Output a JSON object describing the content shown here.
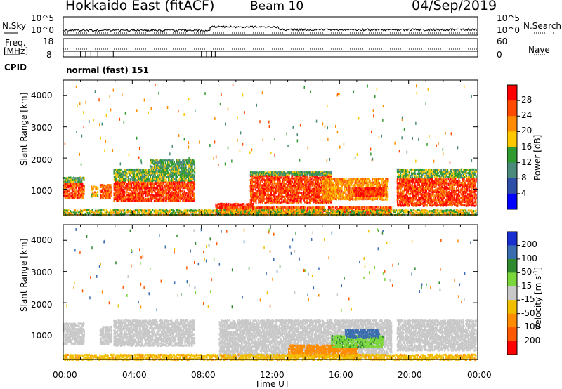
{
  "header": {
    "radar": "Hokkaido East (fitACF)",
    "beam": "Beam 10",
    "date": "04/Sep/2019"
  },
  "noise_panel": {
    "left_label": "N.Sky",
    "right_label": "N.Search",
    "ticks_left": [
      "10^5",
      "10^0"
    ],
    "ticks_right": [
      "10^5",
      "10^0"
    ]
  },
  "freq_panel": {
    "left_label_top": "Freq.",
    "left_label_bottom": "[MHz]",
    "right_label": "Nave",
    "ticks_left": [
      "18",
      "8"
    ],
    "ticks_right": [
      "60",
      "0"
    ]
  },
  "cpid": {
    "label": "CPID",
    "value": "normal (fast) 151"
  },
  "power_panel": {
    "ylabel": "Slant Range [km]",
    "colorbar_label": "Power [dB]",
    "colorbar_ticks": [
      "28",
      "24",
      "20",
      "16",
      "12",
      "8",
      "4"
    ],
    "colorbar_colors": [
      "#ff0000",
      "#ff4a00",
      "#ff8c00",
      "#ffc800",
      "#2f9a2f",
      "#4a8a7a",
      "#2e4fa8",
      "#0000ff"
    ]
  },
  "velocity_panel": {
    "ylabel": "Slant Range [km]",
    "colorbar_label": "Velocity [m s",
    "colorbar_label_sup": "-1",
    "colorbar_label_end": "]",
    "colorbar_ticks": [
      "200",
      "100",
      "50",
      "15",
      "-15",
      "-50",
      "-100",
      "-200"
    ],
    "colorbar_colors": [
      "#1a2fd0",
      "#3a6db0",
      "#2f8a2f",
      "#7ad63a",
      "#c8c8c8",
      "#f0c000",
      "#ff8c00",
      "#ff5a00",
      "#ff0000"
    ]
  },
  "yticks": [
    "4000",
    "3000",
    "2000",
    "1000"
  ],
  "xaxis": {
    "label": "Time UT",
    "ticks": [
      "00:00",
      "04:00",
      "08:00",
      "12:00",
      "16:00",
      "20:00",
      "00:00"
    ]
  },
  "chart_data": {
    "type": "heatmap",
    "title": "Hokkaido East (fitACF)",
    "subtitle": "Beam 10",
    "date": "04/Sep/2019",
    "xlabel": "Time UT",
    "xlim": [
      0,
      24
    ],
    "x_ticks_hours": [
      0,
      4,
      8,
      12,
      16,
      20,
      24
    ],
    "ylabel": "Slant Range [km]",
    "ylim": [
      180,
      4500
    ],
    "panels": [
      {
        "name": "Power [dB]",
        "zrange": [
          0,
          32
        ],
        "colorbar_ticks": [
          4,
          8,
          12,
          16,
          20,
          24,
          28
        ],
        "regions": [
          {
            "t0": 0.0,
            "t1": 1.2,
            "r0": 750,
            "r1": 1250,
            "value": 26
          },
          {
            "t0": 0.0,
            "t1": 1.2,
            "r0": 1250,
            "r1": 1450,
            "value": 14
          },
          {
            "t0": 1.6,
            "t1": 2.0,
            "r0": 800,
            "r1": 1150,
            "value": 20
          },
          {
            "t0": 2.1,
            "t1": 2.8,
            "r0": 750,
            "r1": 1200,
            "value": 25
          },
          {
            "t0": 2.9,
            "t1": 7.6,
            "r0": 650,
            "r1": 1300,
            "value": 27
          },
          {
            "t0": 2.9,
            "t1": 7.6,
            "r0": 1300,
            "r1": 1700,
            "value": 14
          },
          {
            "t0": 5.0,
            "t1": 7.6,
            "r0": 1700,
            "r1": 2000,
            "value": 13
          },
          {
            "t0": 8.8,
            "t1": 11.0,
            "r0": 250,
            "r1": 600,
            "value": 29
          },
          {
            "t0": 10.8,
            "t1": 15.5,
            "r0": 600,
            "r1": 1500,
            "value": 27
          },
          {
            "t0": 10.8,
            "t1": 15.5,
            "r0": 1500,
            "r1": 1600,
            "value": 13
          },
          {
            "t0": 15.0,
            "t1": 18.8,
            "r0": 700,
            "r1": 1400,
            "value": 22
          },
          {
            "t0": 16.8,
            "t1": 18.6,
            "r0": 800,
            "r1": 1100,
            "value": 28
          },
          {
            "t0": 9.5,
            "t1": 19.0,
            "r0": 250,
            "r1": 500,
            "value": 26
          },
          {
            "t0": 19.3,
            "t1": 23.9,
            "r0": 500,
            "r1": 1400,
            "value": 27
          },
          {
            "t0": 19.3,
            "t1": 23.9,
            "r0": 1400,
            "r1": 1700,
            "value": 14
          },
          {
            "t0": 0.0,
            "t1": 23.9,
            "r0": 200,
            "r1": 400,
            "value": 17
          }
        ]
      },
      {
        "name": "Velocity [m s-1]",
        "zrange": [
          -250,
          250
        ],
        "colorbar_ticks": [
          -200,
          -100,
          -50,
          -15,
          15,
          50,
          100,
          200
        ],
        "regions": [
          {
            "t0": 0.0,
            "t1": 1.2,
            "r0": 700,
            "r1": 1400,
            "value": 0
          },
          {
            "t0": 2.1,
            "t1": 2.8,
            "r0": 700,
            "r1": 1300,
            "value": 0
          },
          {
            "t0": 2.9,
            "t1": 7.6,
            "r0": 650,
            "r1": 1500,
            "value": 0
          },
          {
            "t0": 9.0,
            "t1": 19.0,
            "r0": 300,
            "r1": 1500,
            "value": 0
          },
          {
            "t0": 13.0,
            "t1": 17.0,
            "r0": 300,
            "r1": 700,
            "value": -70
          },
          {
            "t0": 15.5,
            "t1": 18.5,
            "r0": 600,
            "r1": 1000,
            "value": 40
          },
          {
            "t0": 16.3,
            "t1": 18.3,
            "r0": 900,
            "r1": 1200,
            "value": 180
          },
          {
            "t0": 19.3,
            "t1": 23.9,
            "r0": 500,
            "r1": 1500,
            "value": 0
          },
          {
            "t0": 0.0,
            "t1": 23.9,
            "r0": 200,
            "r1": 400,
            "value": -40
          }
        ]
      }
    ],
    "noise_sky_log10": [
      {
        "t0": 0.0,
        "t1": 8.5,
        "value": 0.6
      },
      {
        "t0": 8.5,
        "t1": 12.5,
        "value": 1.6
      },
      {
        "t0": 12.5,
        "t1": 24.0,
        "value": 0.8
      }
    ],
    "frequency_mhz": [
      {
        "t0": 0.0,
        "t1": 24.0,
        "value": 11
      }
    ]
  }
}
